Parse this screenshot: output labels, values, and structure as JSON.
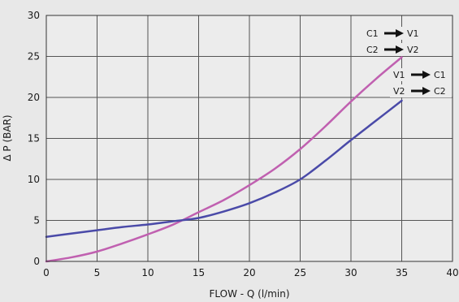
{
  "chart_data": {
    "type": "line",
    "xlabel": "FLOW - Q (l/min)",
    "ylabel": "Δ P (BAR)",
    "xlim": [
      0,
      40
    ],
    "ylim": [
      0,
      30
    ],
    "xticks": [
      "0",
      "5",
      "10",
      "15",
      "20",
      "25",
      "30",
      "35",
      "40"
    ],
    "yticks": [
      "0",
      "5",
      "10",
      "15",
      "20",
      "25",
      "30"
    ],
    "grid": true,
    "series": [
      {
        "name": "C1 → V1 / C2 → V2",
        "color": "#c060b0",
        "labels": [
          {
            "from": "C1",
            "to": "V1"
          },
          {
            "from": "C2",
            "to": "V2"
          }
        ],
        "x": [
          0,
          2.5,
          5,
          7.5,
          10,
          12.5,
          15,
          17.5,
          20,
          22.5,
          25,
          27.5,
          30,
          32.5,
          35
        ],
        "y": [
          0,
          0.5,
          1.2,
          2.2,
          3.3,
          4.5,
          6.0,
          7.5,
          9.3,
          11.3,
          13.7,
          16.5,
          19.5,
          22.3,
          24.9
        ]
      },
      {
        "name": "V1 → C1 / V2 → C2",
        "color": "#4a4aa8",
        "labels": [
          {
            "from": "V1",
            "to": "C1"
          },
          {
            "from": "V2",
            "to": "C2"
          }
        ],
        "x": [
          0,
          2.5,
          5,
          7.5,
          10,
          12.5,
          15,
          17.5,
          20,
          22.5,
          25,
          27.5,
          30,
          32.5,
          35
        ],
        "y": [
          3.0,
          3.4,
          3.8,
          4.2,
          4.5,
          4.9,
          5.3,
          6.1,
          7.1,
          8.4,
          10.0,
          12.3,
          14.8,
          17.2,
          19.6
        ]
      }
    ],
    "legend": {
      "placement": "top-right"
    }
  }
}
